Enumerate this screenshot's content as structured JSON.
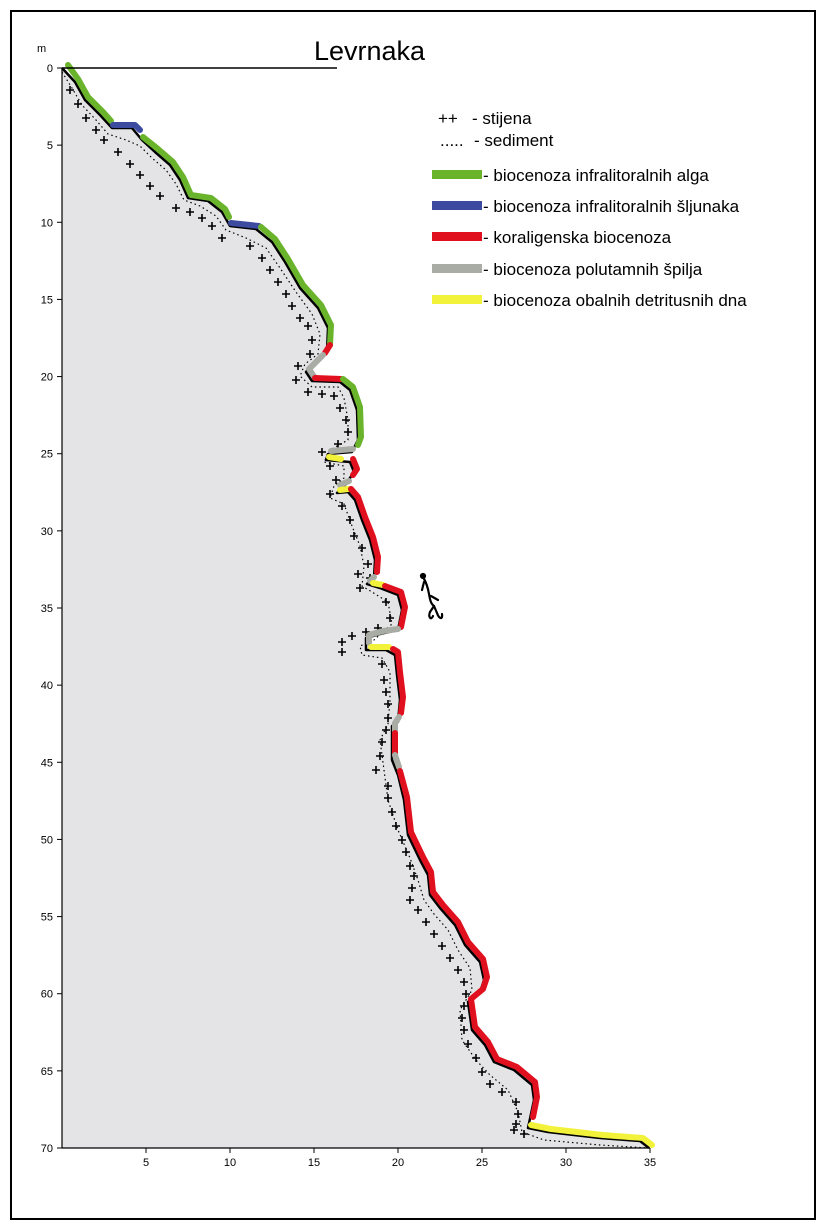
{
  "title": "Levrnaka",
  "y_unit": "m",
  "y_ticks": [
    "0",
    "5",
    "10",
    "15",
    "20",
    "25",
    "30",
    "35",
    "40",
    "45",
    "50",
    "55",
    "60",
    "65",
    "70"
  ],
  "x_ticks": [
    "5",
    "10",
    "15",
    "20",
    "25",
    "30",
    "35"
  ],
  "legend": [
    {
      "symbol": "++",
      "label": "- stijena"
    },
    {
      "symbol": ".....",
      "label": "- sediment"
    },
    {
      "color": "#6ab42c",
      "label": "- biocenoza infralitoralnih alga"
    },
    {
      "color": "#3c4aa0",
      "label": "- biocenoza infralitoralnih šljunaka"
    },
    {
      "color": "#e0101e",
      "label": "- koraligenska biocenoza"
    },
    {
      "color": "#a8aca4",
      "label": "- biocenoza polutamnih špilja"
    },
    {
      "color": "#f2f23a",
      "label": "- biocenoza obalnih detritusnih dna"
    }
  ],
  "colors": {
    "seabed_fill": "#e4e3e6",
    "outline": "#000000"
  },
  "icon": "diver-icon"
}
